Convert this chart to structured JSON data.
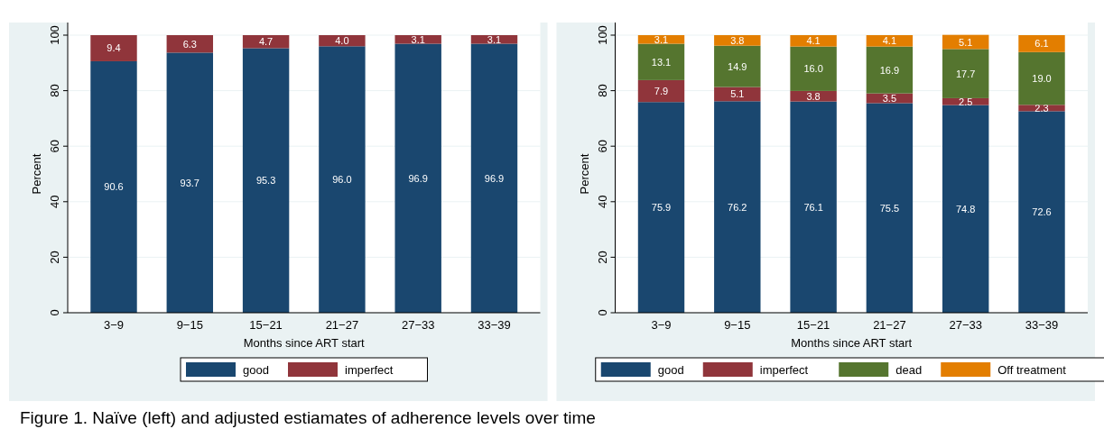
{
  "chart_data": [
    {
      "type": "bar",
      "stacked": true,
      "categories": [
        "3−9",
        "9−15",
        "15−21",
        "21−27",
        "27−33",
        "33−39"
      ],
      "xlabel": "Months since ART start",
      "ylabel": "Percent",
      "ylim": [
        0,
        100
      ],
      "yticks": [
        0,
        20,
        40,
        60,
        80,
        100
      ],
      "grid": "y",
      "legend": "bottom",
      "annotations": [
        "Figure 1. Naïve (left) and adjusted estiamates of adherence levels over time"
      ],
      "series": [
        {
          "name": "good",
          "color": "#1a476f",
          "values": [
            90.6,
            93.7,
            95.3,
            96.0,
            96.9,
            96.9
          ],
          "value_labels": [
            "90.6",
            "93.7",
            "95.3",
            "96.0",
            "96.9",
            "96.9"
          ]
        },
        {
          "name": "imperfect",
          "color": "#90353b",
          "values": [
            9.4,
            6.3,
            4.7,
            4.0,
            3.1,
            3.1
          ],
          "value_labels": [
            "9.4",
            "6.3",
            "4.7",
            "4.0",
            "3.1",
            "3.1"
          ]
        }
      ]
    },
    {
      "type": "bar",
      "stacked": true,
      "categories": [
        "3−9",
        "9−15",
        "15−21",
        "21−27",
        "27−33",
        "33−39"
      ],
      "xlabel": "Months since ART start",
      "ylabel": "Percent",
      "ylim": [
        0,
        100
      ],
      "yticks": [
        0,
        20,
        40,
        60,
        80,
        100
      ],
      "grid": "y",
      "legend": "bottom",
      "series": [
        {
          "name": "good",
          "color": "#1a476f",
          "values": [
            75.9,
            76.2,
            76.1,
            75.5,
            74.8,
            72.6
          ],
          "value_labels": [
            "75.9",
            "76.2",
            "76.1",
            "75.5",
            "74.8",
            "72.6"
          ]
        },
        {
          "name": "imperfect",
          "color": "#90353b",
          "values": [
            7.9,
            5.1,
            3.8,
            3.5,
            2.5,
            2.3
          ],
          "value_labels": [
            "7.9",
            "5.1",
            "3.8",
            "3.5",
            "2.5",
            "2.3"
          ]
        },
        {
          "name": "dead",
          "color": "#55752f",
          "values": [
            13.1,
            14.9,
            16.0,
            16.9,
            17.7,
            19.0
          ],
          "value_labels": [
            "13.1",
            "14.9",
            "16.0",
            "16.9",
            "17.7",
            "19.0"
          ]
        },
        {
          "name": "Off treatment",
          "color": "#e37e00",
          "values": [
            3.1,
            3.8,
            4.1,
            4.1,
            5.1,
            6.1
          ],
          "value_labels": [
            "3.1",
            "3.8",
            "4.1",
            "4.1",
            "5.1",
            "6.1"
          ]
        }
      ]
    }
  ]
}
